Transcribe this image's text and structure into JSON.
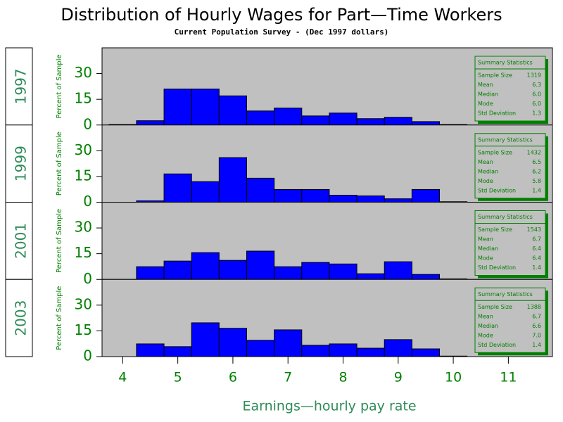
{
  "title": "Distribution of Hourly Wages for Part—Time Workers",
  "subtitle": "Current Population Survey - (Dec 1997 dollars)",
  "x_label": "Earnings—hourly pay rate",
  "chart_data": [
    {
      "type": "histogram",
      "label": "1997",
      "y_label": "Percent of Sample",
      "bins": [
        3.75,
        4.25,
        4.75,
        5.25,
        5.75,
        6.25,
        6.75,
        7.25,
        7.75,
        8.25,
        8.75,
        9.25,
        9.75,
        10.25
      ],
      "values": [
        0.3,
        2.5,
        21,
        21,
        17,
        8.2,
        9.9,
        5.3,
        7,
        3.7,
        4.5,
        2,
        0.3
      ],
      "color": "#0000ff",
      "xlim": [
        3.625,
        11.8
      ],
      "xticks": [
        4,
        5,
        6,
        7,
        8,
        9,
        10,
        11
      ],
      "ylim": [
        0,
        45
      ],
      "yticks": [
        0,
        15,
        30
      ],
      "stats": {
        "title": "Summary Statistics",
        "rows": [
          [
            "Sample Size",
            "1319"
          ],
          [
            "Mean",
            "6.3"
          ],
          [
            "Median",
            "6.0"
          ],
          [
            "Mode",
            "6.0"
          ],
          [
            "Std Deviation",
            "1.3"
          ]
        ]
      }
    },
    {
      "type": "histogram",
      "label": "1999",
      "y_label": "Percent of Sample",
      "bins": [
        3.75,
        4.25,
        4.75,
        5.25,
        5.75,
        6.25,
        6.75,
        7.25,
        7.75,
        8.25,
        8.75,
        9.25,
        9.75,
        10.25
      ],
      "values": [
        0,
        0.8,
        16.5,
        12,
        26,
        14,
        7.4,
        7.4,
        4.1,
        3.7,
        2,
        7.4,
        0.3
      ],
      "color": "#0000ff",
      "xlim": [
        3.625,
        11.8
      ],
      "xticks": [
        4,
        5,
        6,
        7,
        8,
        9,
        10,
        11
      ],
      "ylim": [
        0,
        45
      ],
      "yticks": [
        0,
        15,
        30
      ],
      "stats": {
        "title": "Summary Statistics",
        "rows": [
          [
            "Sample Size",
            "1432"
          ],
          [
            "Mean",
            "6.5"
          ],
          [
            "Median",
            "6.2"
          ],
          [
            "Mode",
            "5.8"
          ],
          [
            "Std Deviation",
            "1.4"
          ]
        ]
      }
    },
    {
      "type": "histogram",
      "label": "2001",
      "y_label": "Percent of Sample",
      "bins": [
        3.75,
        4.25,
        4.75,
        5.25,
        5.75,
        6.25,
        6.75,
        7.25,
        7.75,
        8.25,
        8.75,
        9.25,
        9.75,
        10.25
      ],
      "values": [
        0,
        7.4,
        10.7,
        15.6,
        11.1,
        16.5,
        7.4,
        9.9,
        9,
        3.3,
        10.3,
        2.9,
        0.3
      ],
      "color": "#0000ff",
      "xlim": [
        3.625,
        11.8
      ],
      "xticks": [
        4,
        5,
        6,
        7,
        8,
        9,
        10,
        11
      ],
      "ylim": [
        0,
        45
      ],
      "yticks": [
        0,
        15,
        30
      ],
      "stats": {
        "title": "Summary Statistics",
        "rows": [
          [
            "Sample Size",
            "1543"
          ],
          [
            "Mean",
            "6.7"
          ],
          [
            "Median",
            "6.4"
          ],
          [
            "Mode",
            "6.4"
          ],
          [
            "Std Deviation",
            "1.4"
          ]
        ]
      }
    },
    {
      "type": "histogram",
      "label": "2003",
      "y_label": "Percent of Sample",
      "bins": [
        3.75,
        4.25,
        4.75,
        5.25,
        5.75,
        6.25,
        6.75,
        7.25,
        7.75,
        8.25,
        8.75,
        9.25,
        9.75,
        10.25
      ],
      "values": [
        0,
        7.4,
        5.8,
        19.7,
        16.5,
        9.5,
        15.6,
        6.6,
        7.4,
        4.9,
        9.9,
        4.5,
        0.3
      ],
      "color": "#0000ff",
      "xlim": [
        3.625,
        11.8
      ],
      "xticks": [
        4,
        5,
        6,
        7,
        8,
        9,
        10,
        11
      ],
      "ylim": [
        0,
        45
      ],
      "yticks": [
        0,
        15,
        30
      ],
      "stats": {
        "title": "Summary Statistics",
        "rows": [
          [
            "Sample Size",
            "1388"
          ],
          [
            "Mean",
            "6.7"
          ],
          [
            "Median",
            "6.6"
          ],
          [
            "Mode",
            "7.0"
          ],
          [
            "Std Deviation",
            "1.4"
          ]
        ]
      }
    }
  ]
}
